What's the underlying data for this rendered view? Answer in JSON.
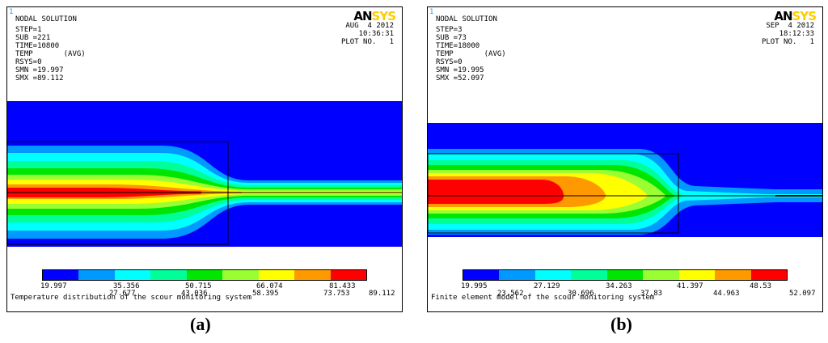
{
  "legend_colors": [
    "#0000ff",
    "#0099ff",
    "#00ffff",
    "#00ff99",
    "#00e600",
    "#99ff33",
    "#ffff00",
    "#ff9900",
    "#ff0000"
  ],
  "panels": [
    {
      "window_number": "1",
      "title": "NODAL SOLUTION",
      "step": "STEP=1",
      "sub": "SUB =221",
      "time": "TIME=10800",
      "temp": "TEMP       (AVG)",
      "rsys": "RSYS=0",
      "smn": "SMN =19.997",
      "smx": "SMX =89.112",
      "logo_an": "AN",
      "logo_sys": "SYS",
      "date": "AUG  4 2012",
      "clock": "10:36:31",
      "plot_no": "PLOT NO.   1",
      "legend_top": [
        "19.997",
        "35.356",
        "50.715",
        "66.074",
        "81.433"
      ],
      "legend_bottom": [
        "27.677",
        "43.036",
        "58.395",
        "73.753",
        "89.112"
      ],
      "caption": "Temperature distribution of the scour monitoring system",
      "sublabel": "(a)"
    },
    {
      "window_number": "1",
      "title": "NODAL SOLUTION",
      "step": "STEP=3",
      "sub": "SUB =73",
      "time": "TIME=18000",
      "temp": "TEMP       (AVG)",
      "rsys": "RSYS=0",
      "smn": "SMN =19.995",
      "smx": "SMX =52.097",
      "logo_an": "AN",
      "logo_sys": "SYS",
      "date": "SEP  4 2012",
      "clock": "18:12:33",
      "plot_no": "PLOT NO.   1",
      "legend_top": [
        "19.995",
        "27.129",
        "34.263",
        "41.397",
        "48.53"
      ],
      "legend_bottom": [
        "23.562",
        "30.696",
        "37.83",
        "44.963",
        "52.097"
      ],
      "caption": "Finite element model of the scour monitoring system",
      "sublabel": "(b)"
    }
  ]
}
